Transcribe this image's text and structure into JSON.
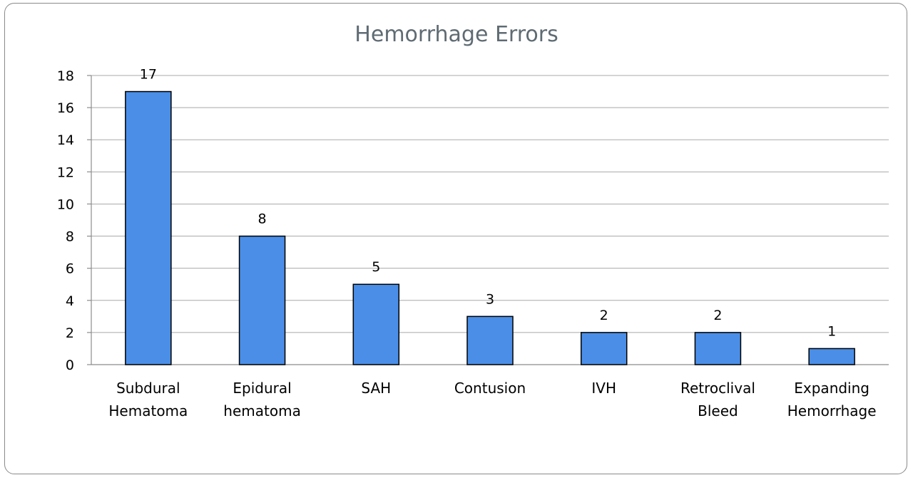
{
  "chart_data": {
    "type": "bar",
    "title": "Hemorrhage Errors",
    "categories": [
      [
        "Subdural",
        "Hematoma"
      ],
      [
        "Epidural",
        "hematoma"
      ],
      [
        "SAH"
      ],
      [
        "Contusion"
      ],
      [
        "IVH"
      ],
      [
        "Retroclival",
        "Bleed"
      ],
      [
        "Expanding",
        "Hemorrhage"
      ]
    ],
    "values": [
      17,
      8,
      5,
      3,
      2,
      2,
      1
    ],
    "data_labels": [
      "17",
      "8",
      "5",
      "3",
      "2",
      "2",
      "1"
    ],
    "y_ticks": [
      0,
      2,
      4,
      6,
      8,
      10,
      12,
      14,
      16,
      18
    ],
    "ylim": [
      0,
      18
    ],
    "grid": true,
    "legend": "none",
    "colors": {
      "bar": "#4a8ee8",
      "bar_border": "#000000",
      "title": "#5f6b73",
      "grid": "#a9a9a9"
    }
  }
}
